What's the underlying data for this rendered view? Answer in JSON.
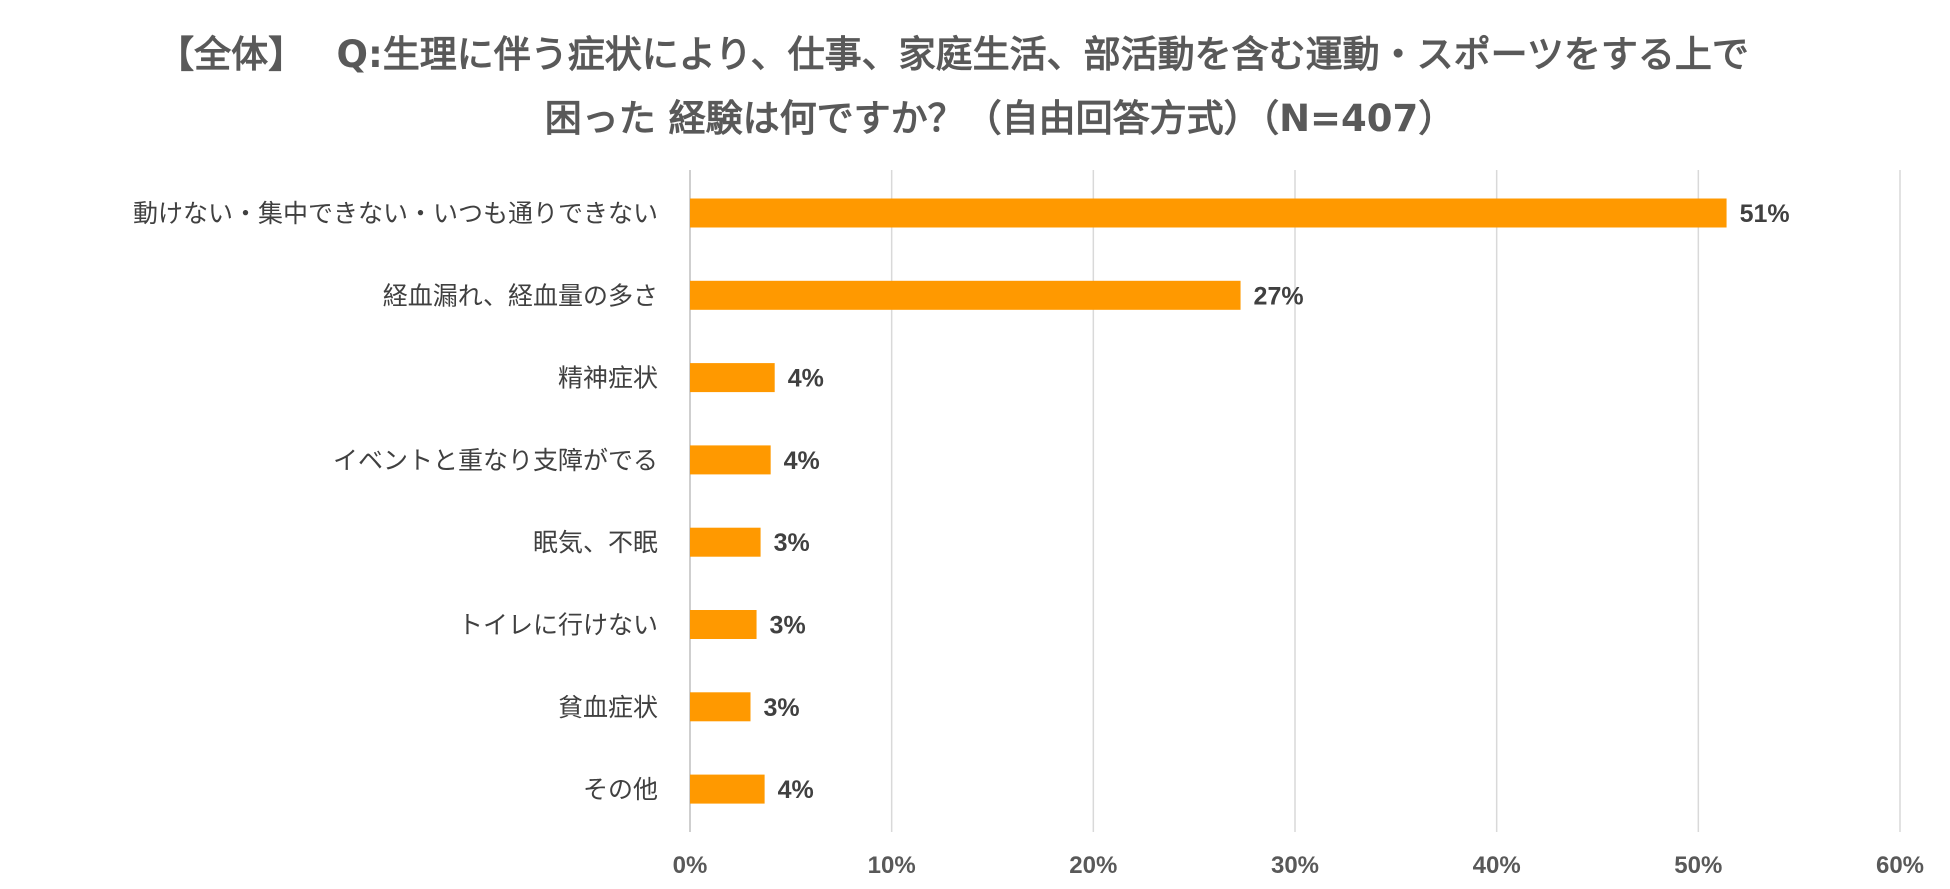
{
  "chart_data": {
    "type": "bar",
    "orientation": "horizontal",
    "title": [
      "【全体】　 Q:生理に伴う症状により、仕事、家庭生活、部活動を含む運動・スポーツをする上で",
      "困った 経験は何ですか？（自由回答方式）（N=407）"
    ],
    "categories": [
      "動けない・集中できない・いつも通りできない",
      "経血漏れ、経血量の多さ",
      "精神症状",
      "イベントと重なり支障がでる",
      "眠気、不眠",
      "トイレに行けない",
      "貧血症状",
      "その他"
    ],
    "values": [
      51.4,
      27.3,
      4.2,
      4.0,
      3.5,
      3.3,
      3.0,
      3.7
    ],
    "data_labels": [
      "51%",
      "27%",
      "4%",
      "4%",
      "3%",
      "3%",
      "3%",
      "4%"
    ],
    "xlim": [
      0,
      60
    ],
    "xticks": [
      0,
      10,
      20,
      30,
      40,
      50,
      60
    ],
    "xtick_labels": [
      "0%",
      "10%",
      "20%",
      "30%",
      "40%",
      "50%",
      "60%"
    ],
    "grid": true,
    "bar_color": "#FF9900"
  }
}
